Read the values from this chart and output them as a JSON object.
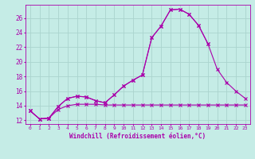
{
  "xlabel": "Windchill (Refroidissement éolien,°C)",
  "background_color": "#c5ece6",
  "grid_color": "#aad4ce",
  "line_color": "#aa00aa",
  "x": [
    0,
    1,
    2,
    3,
    4,
    5,
    6,
    7,
    8,
    9,
    10,
    11,
    12,
    13,
    14,
    15,
    16,
    17,
    18,
    19,
    20,
    21,
    22,
    23
  ],
  "line1": [
    13.3,
    12.2,
    12.3,
    13.9,
    15.0,
    15.3,
    15.2,
    14.7,
    14.4,
    15.5,
    16.7,
    17.5,
    18.2,
    23.3,
    24.9,
    27.1,
    27.2,
    26.5,
    25.0,
    22.5,
    null,
    null,
    null,
    null
  ],
  "line2": [
    13.3,
    12.2,
    12.3,
    13.9,
    15.0,
    15.3,
    15.2,
    14.7,
    14.4,
    15.5,
    16.7,
    17.5,
    18.2,
    23.3,
    24.9,
    27.1,
    27.2,
    26.5,
    25.0,
    22.5,
    19.0,
    17.2,
    16.0,
    15.0
  ],
  "line3": [
    13.3,
    12.2,
    12.3,
    13.5,
    14.0,
    14.2,
    14.2,
    14.2,
    14.1,
    14.1,
    14.1,
    14.1,
    14.1,
    14.1,
    14.1,
    14.1,
    14.1,
    14.1,
    14.1,
    14.1,
    14.1,
    14.1,
    14.1,
    14.1
  ],
  "xlim": [
    -0.5,
    23.5
  ],
  "ylim": [
    11.5,
    27.8
  ],
  "yticks": [
    12,
    14,
    16,
    18,
    20,
    22,
    24,
    26
  ],
  "xticks": [
    0,
    1,
    2,
    3,
    4,
    5,
    6,
    7,
    8,
    9,
    10,
    11,
    12,
    13,
    14,
    15,
    16,
    17,
    18,
    19,
    20,
    21,
    22,
    23
  ],
  "figsize": [
    3.2,
    2.0
  ],
  "dpi": 100
}
